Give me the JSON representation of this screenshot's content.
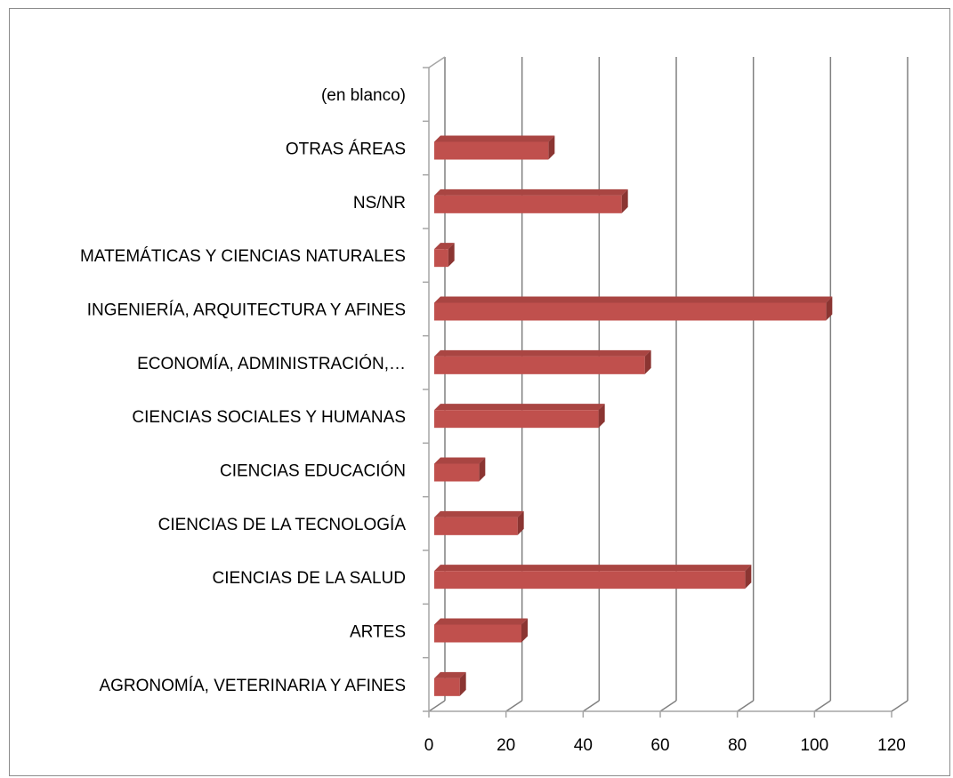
{
  "chart_data": {
    "type": "bar",
    "orientation": "horizontal",
    "style": "3d-clustered",
    "title": "",
    "xlabel": "",
    "ylabel": "",
    "categories": [
      "AGRONOMÍA, VETERINARIA Y AFINES",
      "ARTES",
      "CIENCIAS DE LA SALUD",
      "CIENCIAS DE LA TECNOLOGÍA",
      "CIENCIAS EDUCACIÓN",
      "CIENCIAS SOCIALES Y HUMANAS",
      "ECONOMÍA, ADMINISTRACIÓN,…",
      "INGENIERÍA, ARQUITECTURA Y AFINES",
      "MATEMÁTICAS Y CIENCIAS NATURALES",
      "NS/NR",
      "OTRAS ÁREAS",
      "(en blanco)"
    ],
    "values": [
      8,
      24,
      82,
      23,
      13,
      44,
      56,
      103,
      5,
      50,
      31,
      0
    ],
    "xlim": [
      0,
      120
    ],
    "xticks": [
      "0",
      "20",
      "40",
      "60",
      "80",
      "100",
      "120"
    ],
    "grid": true,
    "legend": "none",
    "colors": {
      "bar_front": "#c0504d",
      "bar_top": "#a94542",
      "bar_side": "#8b3532",
      "gridline": "#808080",
      "wall": "#a6a6a6"
    }
  }
}
